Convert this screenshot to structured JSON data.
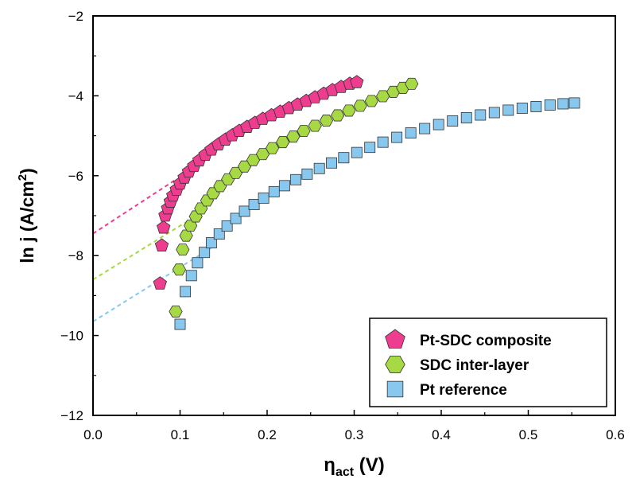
{
  "chart_data": {
    "type": "scatter",
    "title": "",
    "xlabel": {
      "main": "η",
      "sub": "act",
      "unit": " (V)"
    },
    "ylabel": {
      "main": "ln j (A/cm",
      "sup": "2",
      "end": ")"
    },
    "xlim": [
      0.0,
      0.6
    ],
    "ylim": [
      -12,
      -2
    ],
    "xticks": [
      0.0,
      0.1,
      0.2,
      0.3,
      0.4,
      0.5,
      0.6
    ],
    "xtick_labels": [
      "0.0",
      "0.1",
      "0.2",
      "0.3",
      "0.4",
      "0.5",
      "0.6"
    ],
    "yticks": [
      -12,
      -10,
      -8,
      -6,
      -4,
      -2
    ],
    "ytick_labels": [
      "−12",
      "−10",
      "−8",
      "−6",
      "−4",
      "−2"
    ],
    "grid": false,
    "legend_position": "bottom-right",
    "series": [
      {
        "name": "Pt-SDC composite",
        "marker": "pentagon",
        "color": "#ee3d8f",
        "x": [
          0.077,
          0.079,
          0.081,
          0.083,
          0.086,
          0.089,
          0.092,
          0.096,
          0.1,
          0.105,
          0.11,
          0.116,
          0.122,
          0.129,
          0.136,
          0.144,
          0.152,
          0.16,
          0.168,
          0.177,
          0.186,
          0.195,
          0.205,
          0.215,
          0.225,
          0.235,
          0.245,
          0.255,
          0.265,
          0.275,
          0.285,
          0.295,
          0.303
        ],
        "y": [
          -8.7,
          -7.75,
          -7.3,
          -7.0,
          -6.82,
          -6.65,
          -6.5,
          -6.35,
          -6.2,
          -6.05,
          -5.9,
          -5.76,
          -5.62,
          -5.48,
          -5.35,
          -5.22,
          -5.1,
          -4.99,
          -4.88,
          -4.78,
          -4.68,
          -4.58,
          -4.49,
          -4.4,
          -4.31,
          -4.22,
          -4.13,
          -4.04,
          -3.95,
          -3.86,
          -3.78,
          -3.7,
          -3.66
        ],
        "fit_line": {
          "x": [
            0.0,
            0.095
          ],
          "y": [
            -7.45,
            -6.1
          ]
        }
      },
      {
        "name": "SDC inter-layer",
        "marker": "hexagon",
        "color": "#a6d944",
        "x": [
          0.095,
          0.099,
          0.103,
          0.107,
          0.112,
          0.118,
          0.124,
          0.131,
          0.138,
          0.146,
          0.155,
          0.164,
          0.174,
          0.184,
          0.195,
          0.206,
          0.218,
          0.23,
          0.242,
          0.255,
          0.268,
          0.281,
          0.294,
          0.307,
          0.32,
          0.333,
          0.345,
          0.356,
          0.366
        ],
        "y": [
          -9.4,
          -8.35,
          -7.85,
          -7.5,
          -7.25,
          -7.02,
          -6.82,
          -6.62,
          -6.44,
          -6.26,
          -6.09,
          -5.93,
          -5.77,
          -5.61,
          -5.46,
          -5.31,
          -5.16,
          -5.02,
          -4.88,
          -4.75,
          -4.62,
          -4.49,
          -4.37,
          -4.25,
          -4.13,
          -4.01,
          -3.9,
          -3.8,
          -3.7
        ],
        "fit_line": {
          "x": [
            0.0,
            0.13
          ],
          "y": [
            -8.6,
            -6.85
          ]
        }
      },
      {
        "name": "Pt reference",
        "marker": "square",
        "color": "#88c8ee",
        "x": [
          0.1,
          0.106,
          0.113,
          0.12,
          0.128,
          0.136,
          0.145,
          0.154,
          0.164,
          0.174,
          0.185,
          0.196,
          0.208,
          0.22,
          0.233,
          0.246,
          0.26,
          0.274,
          0.288,
          0.303,
          0.318,
          0.333,
          0.349,
          0.365,
          0.381,
          0.397,
          0.413,
          0.429,
          0.445,
          0.461,
          0.477,
          0.493,
          0.509,
          0.525,
          0.54,
          0.553
        ],
        "y": [
          -9.72,
          -8.9,
          -8.5,
          -8.18,
          -7.92,
          -7.68,
          -7.46,
          -7.26,
          -7.07,
          -6.89,
          -6.72,
          -6.56,
          -6.4,
          -6.25,
          -6.1,
          -5.96,
          -5.82,
          -5.68,
          -5.55,
          -5.42,
          -5.29,
          -5.16,
          -5.04,
          -4.93,
          -4.82,
          -4.72,
          -4.63,
          -4.55,
          -4.48,
          -4.42,
          -4.36,
          -4.31,
          -4.27,
          -4.23,
          -4.2,
          -4.18
        ],
        "fit_line": {
          "x": [
            0.0,
            0.14
          ],
          "y": [
            -9.65,
            -7.75
          ]
        }
      }
    ]
  }
}
